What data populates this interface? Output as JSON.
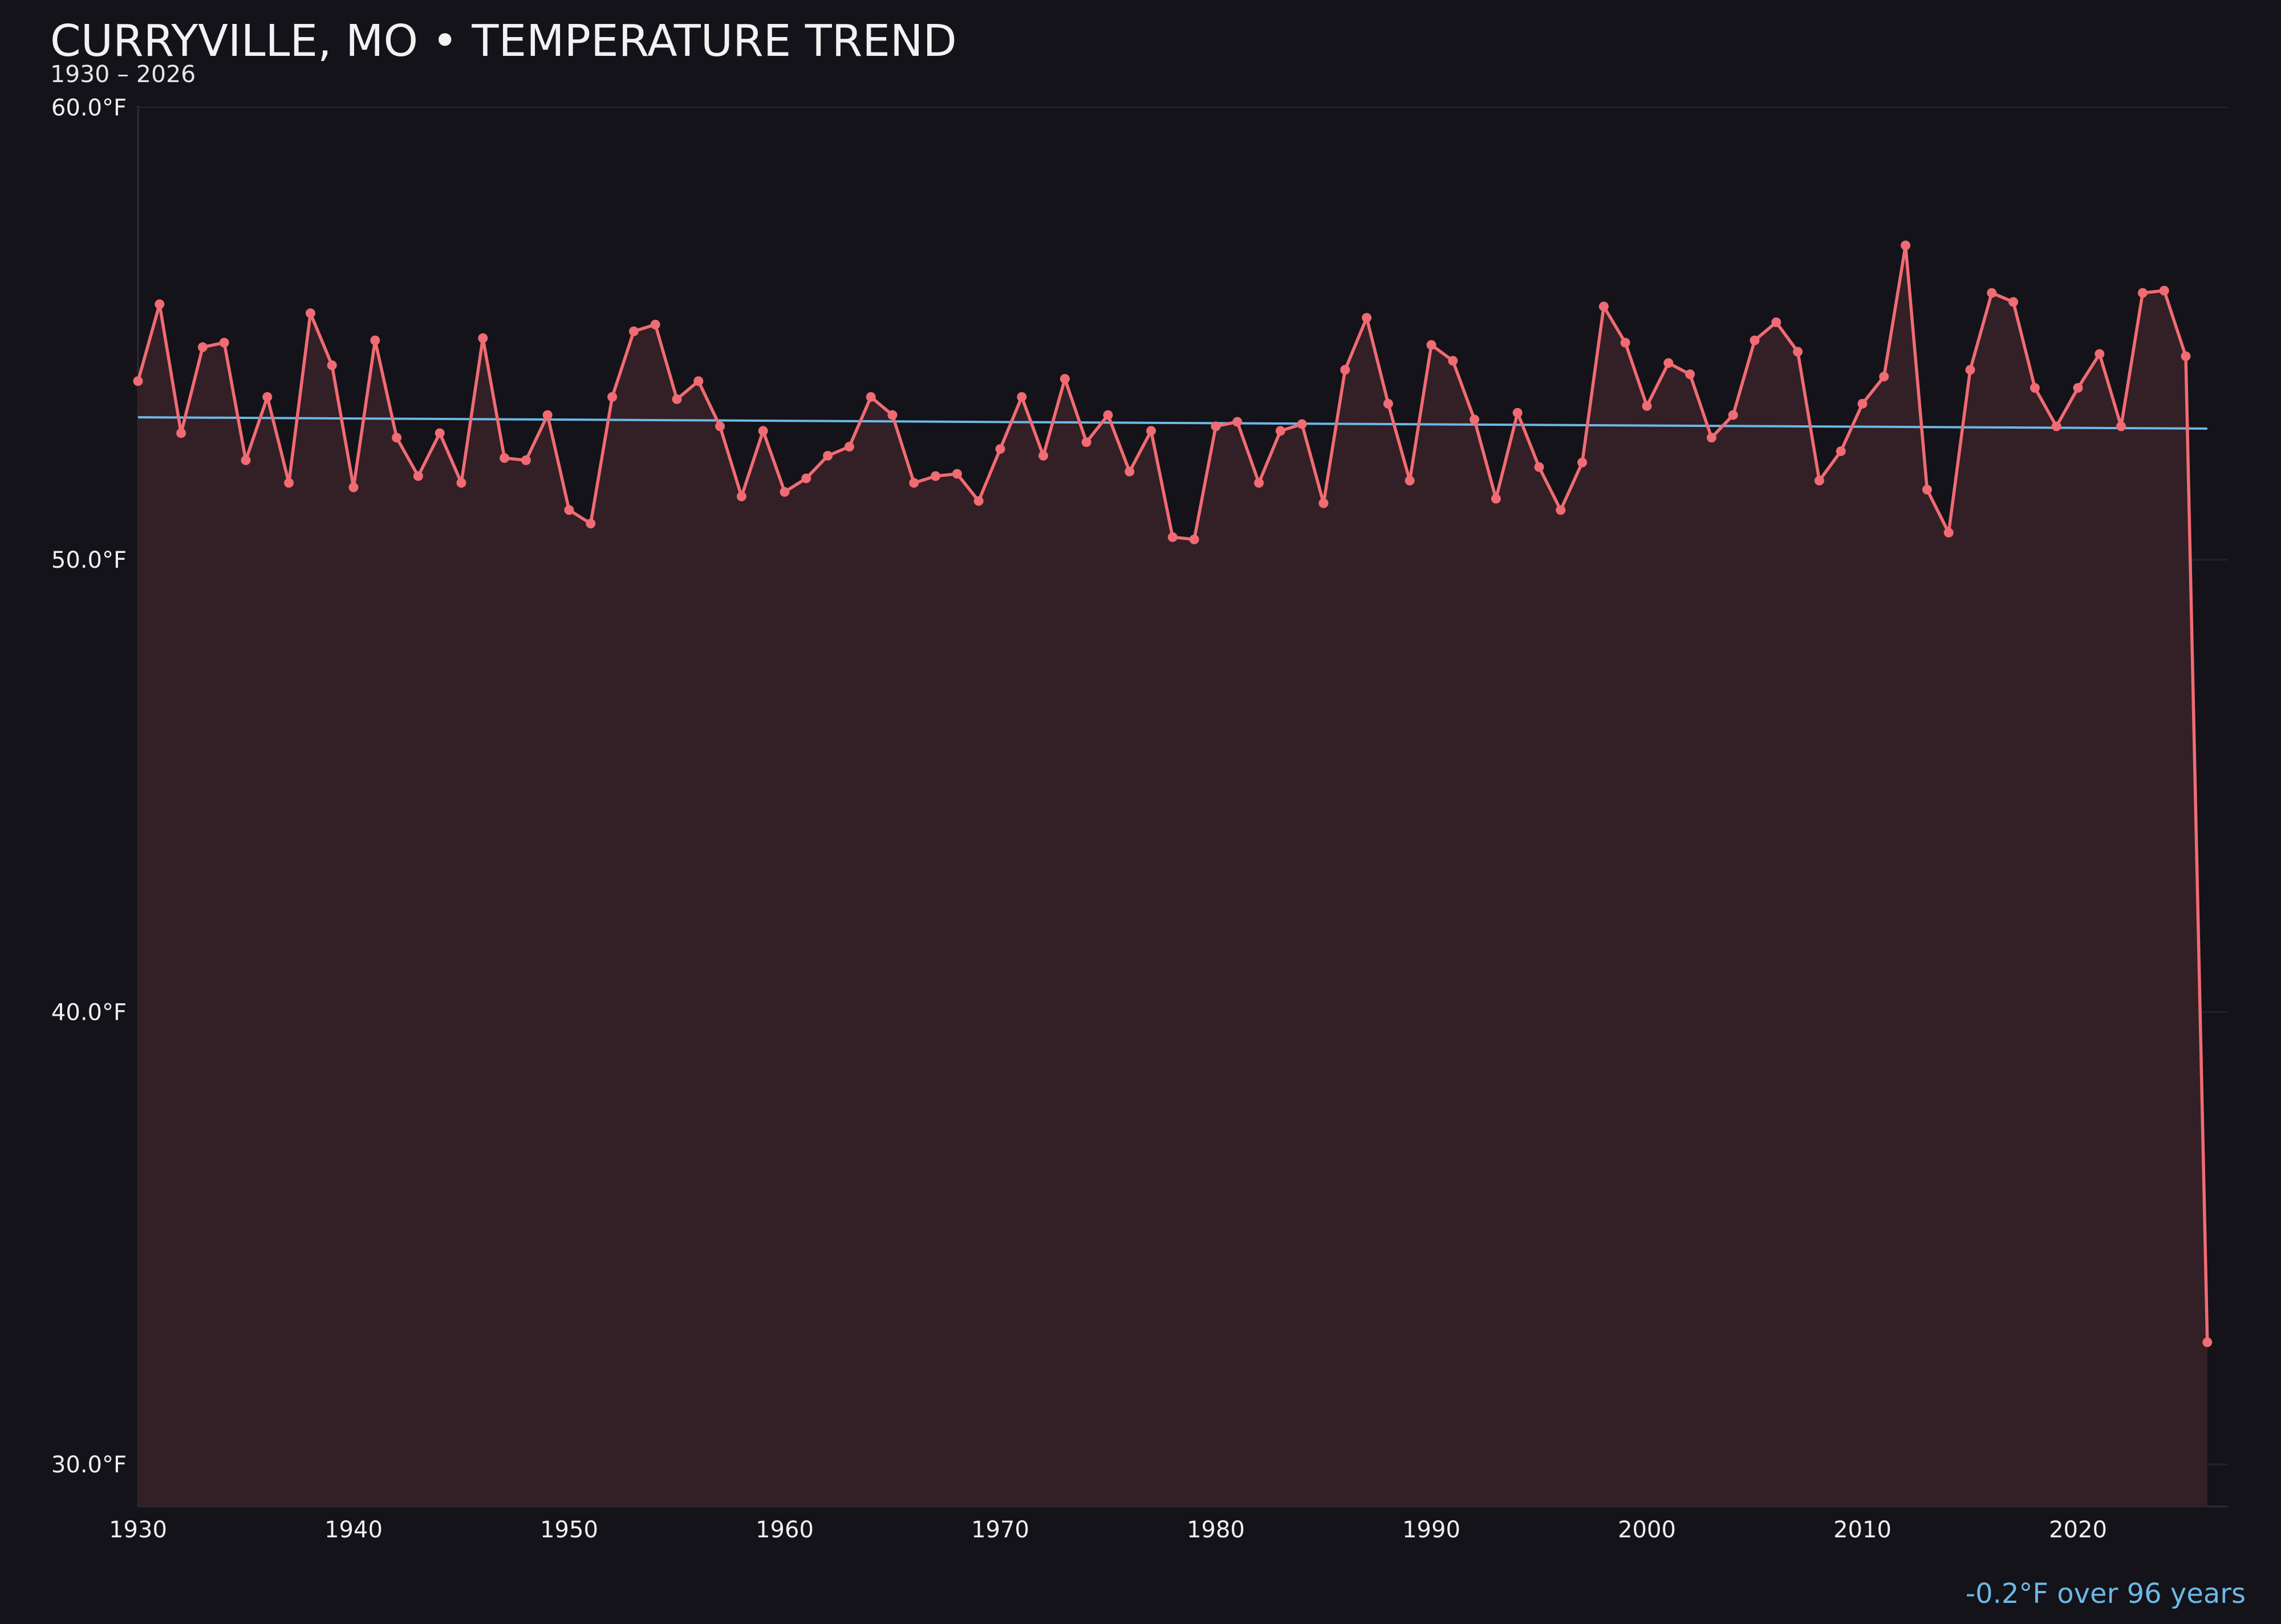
{
  "colors": {
    "background": "#131319",
    "line": "#f06b73",
    "area_fill": "#331f26",
    "trend": "#6cb8e6",
    "grid": "#25202a",
    "axis": "#2b2b33",
    "note": "#6cb8e6"
  },
  "chart_data": {
    "type": "line",
    "title": "CURRYVILLE, MO • TEMPERATURE TREND",
    "subtitle": "1930 – 2026",
    "xlabel": "",
    "ylabel": "",
    "xlim": [
      1930,
      2027
    ],
    "ylim": [
      29,
      60
    ],
    "y_ticks": [
      {
        "value": 30,
        "label": "30.0°F"
      },
      {
        "value": 40,
        "label": "40.0°F"
      },
      {
        "value": 50,
        "label": "50.0°F"
      },
      {
        "value": 60,
        "label": "60.0°F"
      }
    ],
    "x_ticks": [
      {
        "value": 1930,
        "label": "1930"
      },
      {
        "value": 1940,
        "label": "1940"
      },
      {
        "value": 1950,
        "label": "1950"
      },
      {
        "value": 1960,
        "label": "1960"
      },
      {
        "value": 1970,
        "label": "1970"
      },
      {
        "value": 1980,
        "label": "1980"
      },
      {
        "value": 1990,
        "label": "1990"
      },
      {
        "value": 2000,
        "label": "2000"
      },
      {
        "value": 2010,
        "label": "2010"
      },
      {
        "value": 2020,
        "label": "2020"
      }
    ],
    "grid": true,
    "legend": "none",
    "area_filled": true,
    "series": [
      {
        "x": [
          1930,
          1931,
          1932,
          1933,
          1934,
          1935,
          1936,
          1937,
          1938,
          1939,
          1940,
          1941,
          1942,
          1943,
          1944,
          1945,
          1946,
          1947,
          1948,
          1949,
          1950,
          1951,
          1952,
          1953,
          1954,
          1955,
          1956,
          1957,
          1958,
          1959,
          1960,
          1961,
          1962,
          1963,
          1964,
          1965,
          1966,
          1967,
          1968,
          1969,
          1970,
          1971,
          1972,
          1973,
          1974,
          1975,
          1976,
          1977,
          1978,
          1979,
          1980,
          1981,
          1982,
          1983,
          1984,
          1985,
          1986,
          1987,
          1988,
          1989,
          1990,
          1991,
          1992,
          1993,
          1994,
          1995,
          1996,
          1997,
          1998,
          1999,
          2000,
          2001,
          2002,
          2003,
          2004,
          2005,
          2006,
          2007,
          2008,
          2009,
          2010,
          2011,
          2012,
          2013,
          2014,
          2015,
          2016,
          2017,
          2018,
          2019,
          2020,
          2021,
          2022,
          2023,
          2024,
          2025,
          2026
        ],
        "y": [
          53.95,
          55.65,
          52.8,
          54.7,
          54.8,
          52.2,
          53.6,
          51.7,
          55.45,
          54.3,
          51.6,
          54.85,
          52.7,
          51.85,
          52.8,
          51.7,
          54.9,
          52.25,
          52.2,
          53.2,
          51.1,
          50.8,
          53.6,
          55.05,
          55.2,
          53.55,
          53.95,
          52.95,
          51.4,
          52.85,
          51.5,
          51.8,
          52.3,
          52.5,
          53.6,
          53.2,
          51.7,
          51.85,
          51.9,
          51.3,
          52.45,
          53.6,
          52.3,
          54.0,
          52.6,
          53.2,
          51.95,
          52.85,
          50.5,
          50.45,
          52.95,
          53.05,
          51.7,
          52.85,
          53.0,
          51.25,
          54.2,
          55.35,
          53.45,
          51.75,
          54.75,
          54.4,
          53.1,
          51.35,
          53.25,
          52.05,
          51.1,
          52.15,
          55.6,
          54.8,
          53.4,
          54.35,
          54.1,
          52.7,
          53.2,
          54.85,
          55.25,
          54.6,
          51.75,
          52.4,
          53.45,
          54.05,
          56.95,
          51.55,
          50.6,
          54.2,
          55.9,
          55.7,
          53.8,
          52.95,
          53.8,
          54.55,
          52.95,
          55.9,
          55.95,
          54.5,
          32.7
        ]
      }
    ],
    "trend": {
      "x": [
        1930,
        2026
      ],
      "y": [
        53.15,
        52.9
      ]
    },
    "annotation": "-0.2°F over 96 years"
  }
}
